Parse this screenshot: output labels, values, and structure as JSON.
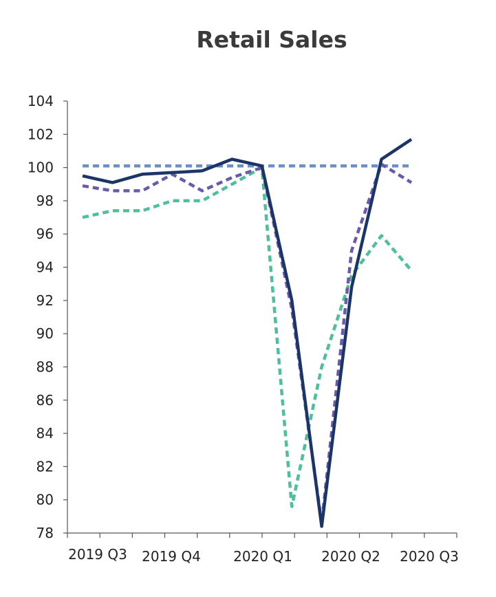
{
  "chart_data": {
    "type": "line",
    "title": "Retail Sales",
    "xlabel": "",
    "ylabel": "",
    "ylim": [
      78,
      104
    ],
    "yticks": [
      78,
      80,
      82,
      84,
      86,
      88,
      90,
      92,
      94,
      96,
      98,
      100,
      102,
      104
    ],
    "x_tick_labels": [
      "2019 Q3",
      "2019 Q4",
      "2020 Q1",
      "2020 Q2",
      "2020 Q3"
    ],
    "grid": false,
    "legend": "none",
    "series": [
      {
        "style": "solid",
        "color": "#1a3566",
        "values": [
          99.5,
          99.1,
          99.6,
          99.7,
          99.8,
          100.5,
          100.1,
          92.0,
          78.4,
          92.8,
          100.5,
          101.7
        ]
      },
      {
        "style": "dashed",
        "color": "#6a5aab",
        "values": [
          98.9,
          98.6,
          98.6,
          99.6,
          98.6,
          99.4,
          100.0,
          91.5,
          78.6,
          95.0,
          100.2,
          99.1
        ]
      },
      {
        "style": "dashed",
        "color": "#4dbf9a",
        "values": [
          97.0,
          97.4,
          97.4,
          98.0,
          98.0,
          99.0,
          100.0,
          79.6,
          88.0,
          93.5,
          95.9,
          93.8
        ]
      },
      {
        "style": "dashed",
        "color": "#6b8fc8",
        "values": [
          100.1,
          100.1,
          100.1,
          100.1,
          100.1,
          100.1,
          100.1,
          100.1,
          100.1,
          100.1,
          100.1,
          100.1
        ]
      }
    ]
  }
}
